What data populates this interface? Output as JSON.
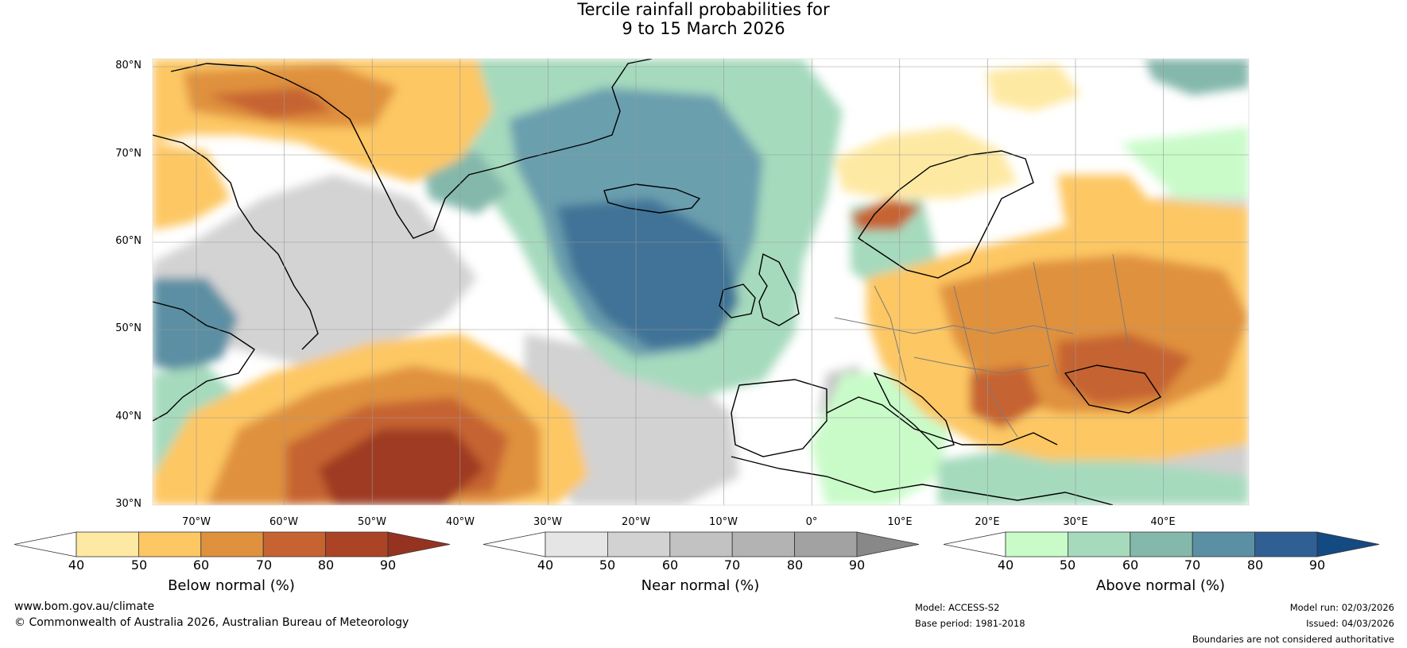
{
  "title": {
    "line1": "Tercile rainfall probabilities for",
    "line2": "9 to 15 March 2026"
  },
  "map": {
    "lat_labels": [
      "80°N",
      "70°N",
      "60°N",
      "50°N",
      "40°N",
      "30°N"
    ],
    "lon_labels": [
      "70°W",
      "60°W",
      "50°W",
      "40°W",
      "30°W",
      "20°W",
      "10°W",
      "0°",
      "10°E",
      "20°E",
      "30°E",
      "40°E"
    ],
    "colors": {
      "ocean_bg": "#ffffff",
      "coastline": "#000000",
      "border": "#7a7a7a",
      "gridline": "#9a9a9a"
    }
  },
  "colorbars": {
    "below": {
      "label": "Below normal (%)",
      "ticks": [
        "40",
        "50",
        "60",
        "70",
        "80",
        "90"
      ],
      "colors": [
        "#ffffff",
        "#fee9a3",
        "#fdc764",
        "#e0913e",
        "#c66330",
        "#ab4425",
        "#963320"
      ]
    },
    "near": {
      "label": "Near normal (%)",
      "ticks": [
        "40",
        "50",
        "60",
        "70",
        "80",
        "90"
      ],
      "colors": [
        "#ffffff",
        "#e5e5e5",
        "#d2d2d2",
        "#c2c2c2",
        "#b3b3b3",
        "#a2a2a2",
        "#888888"
      ]
    },
    "above": {
      "label": "Above normal (%)",
      "ticks": [
        "40",
        "50",
        "60",
        "70",
        "80",
        "90"
      ],
      "colors": [
        "#ffffff",
        "#c9fbc9",
        "#a6dabd",
        "#84b8ab",
        "#5b8fa3",
        "#305f94",
        "#134a82"
      ]
    }
  },
  "footer": {
    "website": "www.bom.gov.au/climate",
    "copyright": "© Commonwealth of Australia 2026, Australian Bureau of Meteorology",
    "model": "Model: ACCESS-S2",
    "base_period": "Base period: 1981-2018",
    "model_run": "Model run: 02/03/2026",
    "issued": "Issued: 04/03/2026",
    "disclaimer": "Boundaries are not considered authoritative"
  }
}
